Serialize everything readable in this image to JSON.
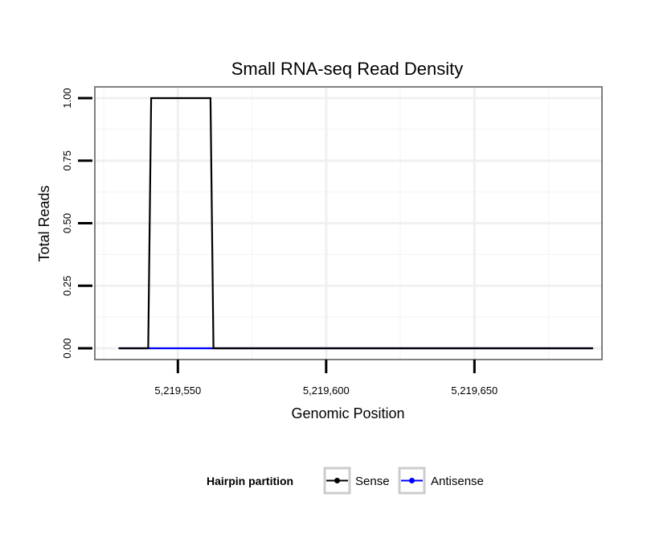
{
  "chart_data": {
    "type": "line",
    "title": "Small RNA-seq Read Density",
    "xlabel": "Genomic Position",
    "ylabel": "Total Reads",
    "xlim": [
      5219522,
      5219693
    ],
    "ylim": [
      -0.045,
      1.045
    ],
    "x_ticks": [
      {
        "value": 5219550,
        "label": "5,219,550"
      },
      {
        "value": 5219600,
        "label": "5,219,600"
      },
      {
        "value": 5219650,
        "label": "5,219,650"
      }
    ],
    "y_ticks": [
      {
        "value": 0.0,
        "label": "0.00"
      },
      {
        "value": 0.25,
        "label": "0.25"
      },
      {
        "value": 0.5,
        "label": "0.50"
      },
      {
        "value": 0.75,
        "label": "0.75"
      },
      {
        "value": 1.0,
        "label": "1.00"
      }
    ],
    "grid": true,
    "series": [
      {
        "name": "Antisense",
        "color": "#0000ff",
        "x": [
          5219530,
          5219540,
          5219562,
          5219690
        ],
        "y": [
          0,
          0,
          0,
          0
        ]
      },
      {
        "name": "Sense",
        "color": "#000000",
        "x": [
          5219530,
          5219540,
          5219541,
          5219561,
          5219562,
          5219690
        ],
        "y": [
          0,
          0,
          1,
          1,
          0,
          0
        ]
      }
    ],
    "legend": {
      "title": "Hairpin partition",
      "position": "bottom",
      "entries": [
        {
          "label": "Sense",
          "color": "#000000"
        },
        {
          "label": "Antisense",
          "color": "#0000ff"
        }
      ]
    }
  }
}
